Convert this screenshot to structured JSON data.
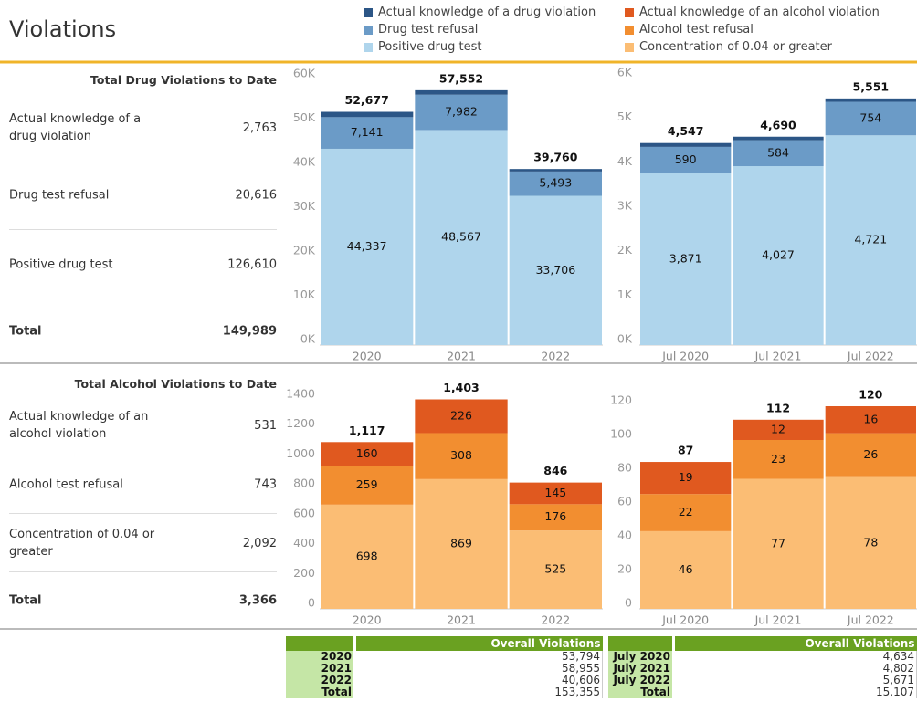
{
  "header": {
    "title": "Violations"
  },
  "drug_summary": {
    "title": "Total Drug Violations to Date",
    "rows": [
      [
        "Actual knowledge of a drug violation",
        "2,763"
      ],
      [
        "Drug test refusal",
        "20,616"
      ],
      [
        "Positive drug test",
        "126,610"
      ],
      [
        "Total",
        "149,989"
      ]
    ]
  },
  "alcohol_summary": {
    "title": "Total Alcohol Violations to Date",
    "rows": [
      [
        "Actual knowledge of an alcohol violation",
        "531"
      ],
      [
        "Alcohol test refusal",
        "743"
      ],
      [
        "Concentration of 0.04 or greater",
        "2,092"
      ],
      [
        "Total",
        "3,366"
      ]
    ]
  },
  "chart_data": [
    {
      "type": "bar",
      "stacked": true,
      "categories": [
        "2020",
        "2021",
        "2022"
      ],
      "series": [
        {
          "name": "Actual knowledge of a drug violation",
          "color": "#2c5686",
          "values": [
            1199,
            1003,
            561
          ],
          "value_labels": [
            null,
            null,
            null
          ]
        },
        {
          "name": "Drug test refusal",
          "color": "#6b9bc7",
          "values": [
            7141,
            7982,
            5493
          ],
          "value_labels": [
            "7,141",
            "7,982",
            "5,493"
          ]
        },
        {
          "name": "Positive drug test",
          "color": "#afd5ec",
          "values": [
            44337,
            48567,
            33706
          ],
          "value_labels": [
            "44,337",
            "48,567",
            "33,706"
          ]
        }
      ],
      "totals": [
        52677,
        57552,
        39760
      ],
      "total_labels": [
        "52,677",
        "57,552",
        "39,760"
      ],
      "ylim": [
        0,
        60000
      ],
      "yticks": [
        {
          "value": 0,
          "label": "0K"
        },
        {
          "value": 10000,
          "label": "10K"
        },
        {
          "value": 20000,
          "label": "20K"
        },
        {
          "value": 30000,
          "label": "30K"
        },
        {
          "value": 40000,
          "label": "40K"
        },
        {
          "value": 50000,
          "label": "50K"
        },
        {
          "value": 60000,
          "label": "60K"
        }
      ]
    },
    {
      "type": "bar",
      "stacked": true,
      "categories": [
        "Jul 2020",
        "Jul 2021",
        "Jul 2022"
      ],
      "series": [
        {
          "color": "#2c5686",
          "values": [
            86,
            79,
            76
          ],
          "value_labels": [
            null,
            null,
            null
          ]
        },
        {
          "color": "#6b9bc7",
          "values": [
            590,
            584,
            754
          ],
          "value_labels": null
        },
        {
          "color": "#afd5ec",
          "values": [
            3871,
            4027,
            4721
          ],
          "value_labels": [
            "3,871",
            "4,027",
            "4,721"
          ]
        }
      ],
      "totals": [
        4547,
        4690,
        5551
      ],
      "total_labels": [
        "4,547",
        "4,690",
        "5,551"
      ],
      "ylim": [
        0,
        6000
      ],
      "yticks": [
        {
          "value": 0,
          "label": "0K"
        },
        {
          "value": 1000,
          "label": "1K"
        },
        {
          "value": 2000,
          "label": "2K"
        },
        {
          "value": 3000,
          "label": "3K"
        },
        {
          "value": 4000,
          "label": "4K"
        },
        {
          "value": 5000,
          "label": "5K"
        },
        {
          "value": 6000,
          "label": "6K"
        }
      ]
    },
    {
      "type": "bar",
      "stacked": true,
      "categories": [
        "2020",
        "2021",
        "2022"
      ],
      "series": [
        {
          "name": "Actual knowledge of an alcohol violation",
          "color": "#e0591f",
          "values": [
            160,
            226,
            145
          ]
        },
        {
          "name": "Alcohol test refusal",
          "color": "#f28e30",
          "values": [
            259,
            308,
            176
          ]
        },
        {
          "name": "Concentration of 0.04 or greater",
          "color": "#fbbd74",
          "values": [
            698,
            869,
            525
          ]
        }
      ],
      "totals": [
        1117,
        1403,
        846
      ],
      "total_labels": [
        "1,117",
        "1,403",
        "846"
      ],
      "ylim": [
        0,
        1400
      ],
      "yticks": [
        0,
        200,
        400,
        600,
        800,
        1000,
        1200,
        1400
      ]
    },
    {
      "type": "bar",
      "stacked": true,
      "categories": [
        "Jul 2020",
        "Jul 2021",
        "Jul 2022"
      ],
      "series": [
        {
          "color": "#e0591f",
          "values": [
            19,
            12,
            16
          ]
        },
        {
          "color": "#f28e30",
          "values": [
            22,
            23,
            26
          ]
        },
        {
          "color": "#fbbd74",
          "values": [
            46,
            77,
            78
          ]
        }
      ],
      "totals": [
        87,
        112,
        120
      ],
      "ylim": [
        0,
        120
      ],
      "yticks": [
        0,
        20,
        40,
        60,
        80,
        100,
        120
      ]
    }
  ],
  "yearly_table": {
    "column_header": "Overall Violations",
    "rows": [
      [
        "2020",
        "53,794"
      ],
      [
        "2021",
        "58,955"
      ],
      [
        "2022",
        "40,606"
      ],
      [
        "Total",
        "153,355"
      ]
    ]
  },
  "monthly_table": {
    "column_header": "Overall Violations",
    "rows": [
      [
        "July 2020",
        "4,634"
      ],
      [
        "July 2021",
        "4,802"
      ],
      [
        "July 2022",
        "5,671"
      ],
      [
        "Total",
        "15,107"
      ]
    ]
  }
}
